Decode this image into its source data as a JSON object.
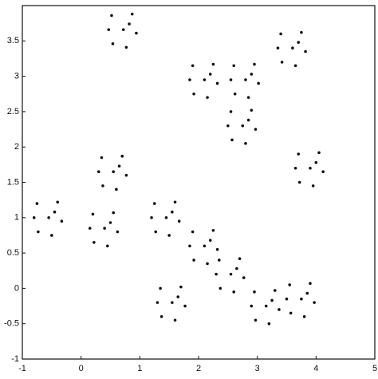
{
  "chart_data": {
    "type": "scatter",
    "color": "#111111",
    "x": [
      0.52,
      0.87,
      0.94,
      0.54,
      0.77,
      0.47,
      0.82,
      0.72,
      1.9,
      2.25,
      2.32,
      1.92,
      2.15,
      1.85,
      2.2,
      2.1,
      2.6,
      2.95,
      3.02,
      2.62,
      2.85,
      2.55,
      2.9,
      2.8,
      2.55,
      2.9,
      2.97,
      2.57,
      2.8,
      2.5,
      2.85,
      2.75,
      3.4,
      3.75,
      3.82,
      3.42,
      3.65,
      3.35,
      3.7,
      3.6,
      3.7,
      4.05,
      4.12,
      3.72,
      3.95,
      3.65,
      4.0,
      3.9,
      0.35,
      0.7,
      0.77,
      0.37,
      0.6,
      0.3,
      0.65,
      0.55,
      -0.75,
      -0.4,
      -0.33,
      -0.73,
      -0.5,
      -0.8,
      -0.45,
      -0.55,
      0.2,
      0.55,
      0.62,
      0.22,
      0.45,
      0.15,
      0.5,
      0.4,
      1.25,
      1.6,
      1.67,
      1.27,
      1.5,
      1.2,
      1.55,
      1.45,
      1.9,
      2.25,
      2.32,
      1.92,
      2.15,
      1.85,
      2.2,
      2.1,
      2.35,
      2.7,
      2.77,
      2.37,
      2.6,
      2.3,
      2.65,
      2.55,
      1.35,
      1.7,
      1.77,
      1.37,
      1.6,
      1.3,
      1.65,
      1.55,
      2.95,
      3.3,
      3.37,
      2.97,
      3.2,
      2.9,
      3.25,
      3.15,
      3.55,
      3.9,
      3.97,
      3.57,
      3.8,
      3.5,
      3.85,
      3.75
    ],
    "y": [
      3.86,
      3.88,
      3.61,
      3.46,
      3.41,
      3.66,
      3.74,
      3.66,
      3.15,
      3.17,
      2.9,
      2.75,
      2.7,
      2.95,
      3.03,
      2.95,
      3.15,
      3.17,
      2.9,
      2.75,
      2.7,
      2.95,
      3.03,
      2.95,
      2.5,
      2.52,
      2.25,
      2.1,
      2.05,
      2.3,
      2.38,
      2.3,
      3.6,
      3.62,
      3.35,
      3.2,
      3.15,
      3.4,
      3.48,
      3.4,
      1.9,
      1.92,
      1.65,
      1.5,
      1.45,
      1.7,
      1.78,
      1.7,
      1.85,
      1.87,
      1.6,
      1.45,
      1.4,
      1.65,
      1.73,
      1.65,
      1.2,
      1.22,
      0.95,
      0.8,
      0.75,
      1.0,
      1.08,
      1.0,
      1.05,
      1.07,
      0.8,
      0.65,
      0.6,
      0.85,
      0.93,
      0.85,
      1.2,
      1.22,
      0.95,
      0.8,
      0.75,
      1.0,
      1.08,
      1.0,
      0.8,
      0.82,
      0.55,
      0.4,
      0.35,
      0.6,
      0.68,
      0.6,
      0.4,
      0.42,
      0.15,
      0,
      -0.05,
      0.2,
      0.28,
      0.2,
      0,
      0.02,
      -0.25,
      -0.4,
      -0.45,
      -0.2,
      -0.12,
      -0.2,
      -0.05,
      -0.03,
      -0.3,
      -0.45,
      -0.5,
      -0.25,
      -0.17,
      -0.25,
      0.05,
      0.07,
      -0.2,
      -0.35,
      -0.4,
      -0.15,
      -0.07,
      -0.15
    ],
    "xlim": [
      -1,
      5
    ],
    "ylim": [
      -1,
      4
    ],
    "xticks": [
      -1,
      0,
      1,
      2,
      3,
      4,
      5
    ],
    "yticks": [
      -1,
      -0.5,
      0,
      0.5,
      1,
      1.5,
      2,
      2.5,
      3,
      3.5
    ]
  }
}
